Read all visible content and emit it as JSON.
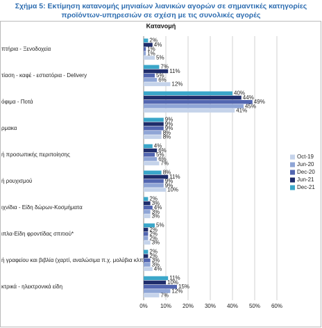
{
  "chart_data": {
    "type": "bar",
    "orientation": "horizontal",
    "title": [
      "Σχήμα 5: Εκτίμηση κατανομής μηνιαίων λιανικών αγορών σε σημαντικές κατηγορίες",
      "προϊόντων-υπηρεσιών σε σχέση με τις συνολικές αγορές"
    ],
    "subtitle": "Κατανομή",
    "categories": [
      "πτήρια - Ξενοδοχεία",
      "τίαση - καφέ - εστιατόρια - Delivery",
      "όφιμα - Ποτά",
      "ρμακα",
      "ή προσωπικής περιποίησης",
      "ή ρουχισμού",
      "ιχνίδια - Είδη δώρων-Κοσμήματα",
      "ιπλα-Είδη φροντίδας σπιτιού*",
      "ή γραφείου και βιβλία (χαρτί, αναλώσιμα π.χ. μολύβια κλπ)",
      "κτρικά - ηλεκτρονικά είδη"
    ],
    "series": [
      {
        "name": "Oct-19",
        "color": "#c5d3ea",
        "values": [
          5,
          12,
          41,
          8,
          7,
          10,
          3,
          3,
          4,
          7
        ],
        "value_labels": [
          "5%",
          "12%",
          "41%",
          "8%",
          "7%",
          "10%",
          "3%",
          "3%",
          "4%",
          "7%"
        ]
      },
      {
        "name": "Jun-20",
        "color": "#8fa5d6",
        "values": [
          1,
          6,
          45,
          8,
          6,
          9,
          3,
          2,
          3,
          12
        ],
        "value_labels": [
          "1%",
          "6%",
          "45%",
          "8%",
          "6%",
          "9%",
          "3%",
          "2%",
          "3%",
          "12%"
        ]
      },
      {
        "name": "Dec-20",
        "color": "#5266b0",
        "values": [
          1,
          5,
          49,
          9,
          5,
          9,
          4,
          2,
          3,
          15
        ],
        "value_labels": [
          "1%",
          "5%",
          "49%",
          "9%",
          "5%",
          "9%",
          "4%",
          "2%",
          "3%",
          "15%"
        ]
      },
      {
        "name": "Jun-21",
        "color": "#1f2d6b",
        "values": [
          4,
          11,
          44,
          9,
          6,
          11,
          3,
          2,
          2,
          10
        ],
        "value_labels": [
          "4%",
          "11%",
          "44%",
          "9%",
          "6%",
          "11%",
          "3%",
          "2%",
          "2%",
          "10%"
        ]
      },
      {
        "name": "Dec-21",
        "color": "#3aa6c9",
        "values": [
          2,
          7,
          40,
          9,
          4,
          8,
          2,
          5,
          2,
          11
        ],
        "value_labels": [
          "2%",
          "7%",
          "40%",
          "9%",
          "4%",
          "8%",
          "2%",
          "5%",
          "2%",
          "11%"
        ]
      }
    ],
    "xlim": [
      0,
      60
    ],
    "xticks": [
      {
        "value": 0,
        "label": "0%"
      },
      {
        "value": 10,
        "label": "10%"
      },
      {
        "value": 20,
        "label": "20%"
      },
      {
        "value": 30,
        "label": "30%"
      },
      {
        "value": 40,
        "label": "40%"
      },
      {
        "value": 50,
        "label": "50%"
      },
      {
        "value": 60,
        "label": "60%"
      }
    ],
    "grid": true,
    "legend": "right"
  }
}
